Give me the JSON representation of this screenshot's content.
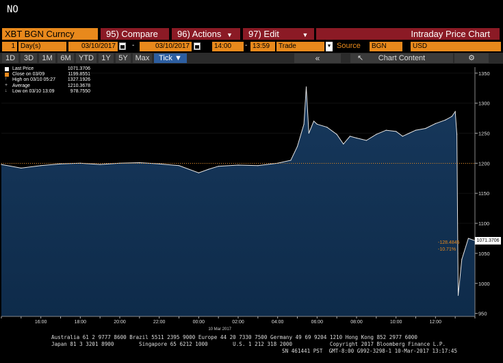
{
  "command_line": {
    "text": "NO"
  },
  "menubar": {
    "ticker": "XBT BGN Curncy",
    "compare": {
      "num": "95)",
      "label": "Compare"
    },
    "actions": {
      "num": "96)",
      "label": "Actions"
    },
    "edit": {
      "num": "97)",
      "label": "Edit"
    },
    "title": "Intraday Price Chart"
  },
  "params": {
    "period_count": "1",
    "period_unit": "Day(s)",
    "start_date": "03/10/2017",
    "end_date": "03/10/2017",
    "start_time": "14:00",
    "end_time": "13:59",
    "event": "Trade",
    "source_label": "Source",
    "source_value": "BGN",
    "currency": "USD"
  },
  "range_buttons": [
    "1D",
    "3D",
    "1M",
    "6M",
    "YTD",
    "1Y",
    "5Y",
    "Max"
  ],
  "tick_button": "Tick",
  "chart_content_label": "Chart Content",
  "legend": {
    "rows": [
      {
        "label": "Last Price",
        "value": "1071.3706",
        "color": "#ffffff"
      },
      {
        "label": "Close on 03/09",
        "value": "1199.8551",
        "color": "#e8891c"
      },
      {
        "label": "High on 03/10 05:27",
        "value": "1327.1926",
        "color": "#cccccc"
      },
      {
        "label": "Average",
        "value": "1210.3678",
        "color": "#cccccc"
      },
      {
        "label": "Low on 03/10 13:09",
        "value": "978.7550",
        "color": "#cccccc"
      }
    ]
  },
  "last_price_tag": "1071.3706",
  "change_abs": "-128.4845",
  "change_pct": "-10.71%",
  "date_label": "10 Mar 2017",
  "colors": {
    "area_fill": "#0e2b4a",
    "line": "#e6e6e6",
    "ref_line": "#e8891c",
    "menu_red": "#8b1a25",
    "bloomberg_orange": "#e8891c"
  },
  "chart_data": {
    "type": "area",
    "title": "Intraday Price Chart",
    "xlabel": "",
    "ylabel": "",
    "x_tick_labels": [
      "16:00",
      "18:00",
      "20:00",
      "22:00",
      "00:00",
      "02:00",
      "04:00",
      "06:00",
      "08:00",
      "10:00",
      "12:00"
    ],
    "y_ticks": [
      950,
      1000,
      1050,
      1100,
      1150,
      1200,
      1250,
      1300,
      1350
    ],
    "ylim": [
      945,
      1360
    ],
    "x_hours_range": [
      14.0,
      38.0
    ],
    "reference_line": {
      "label": "Close on 03/09",
      "value": 1199.8551
    },
    "series": [
      {
        "name": "Last Price",
        "x_time": [
          "14:00",
          "15:00",
          "16:00",
          "17:00",
          "18:00",
          "19:00",
          "20:00",
          "21:00",
          "22:00",
          "23:00",
          "00:00",
          "00:30",
          "01:00",
          "02:00",
          "03:00",
          "04:00",
          "04:40",
          "05:00",
          "05:20",
          "05:27",
          "05:35",
          "05:50",
          "06:00",
          "06:30",
          "07:00",
          "07:20",
          "07:40",
          "08:00",
          "08:30",
          "09:00",
          "09:30",
          "10:00",
          "10:20",
          "10:40",
          "11:00",
          "11:30",
          "12:00",
          "12:30",
          "12:50",
          "13:00",
          "13:05",
          "13:09",
          "13:20",
          "13:40",
          "13:59"
        ],
        "values": [
          1198,
          1192,
          1196,
          1199,
          1200,
          1198,
          1200,
          1201,
          1199,
          1196,
          1184,
          1190,
          1195,
          1197,
          1196,
          1200,
          1205,
          1228,
          1265,
          1327,
          1250,
          1270,
          1265,
          1260,
          1248,
          1232,
          1245,
          1242,
          1238,
          1248,
          1255,
          1253,
          1245,
          1250,
          1255,
          1258,
          1266,
          1272,
          1278,
          1286,
          1248,
          980,
          1040,
          1075,
          1071.3706
        ]
      }
    ]
  },
  "footer": {
    "line1": "Australia 61 2 9777 8600 Brazil 5511 2395 9000 Europe 44 20 7330 7500 Germany 49 69 9204 1210 Hong Kong 852 2977 6000",
    "line2": "Japan 81 3 3201 8900        Singapore 65 6212 1000        U.S. 1 212 318 2000            Copyright 2017 Bloomberg Finance L.P.",
    "line3": "SN 461441 PST  GMT-8:00 G992-3298-1 10-Mar-2017 13:17:45"
  }
}
